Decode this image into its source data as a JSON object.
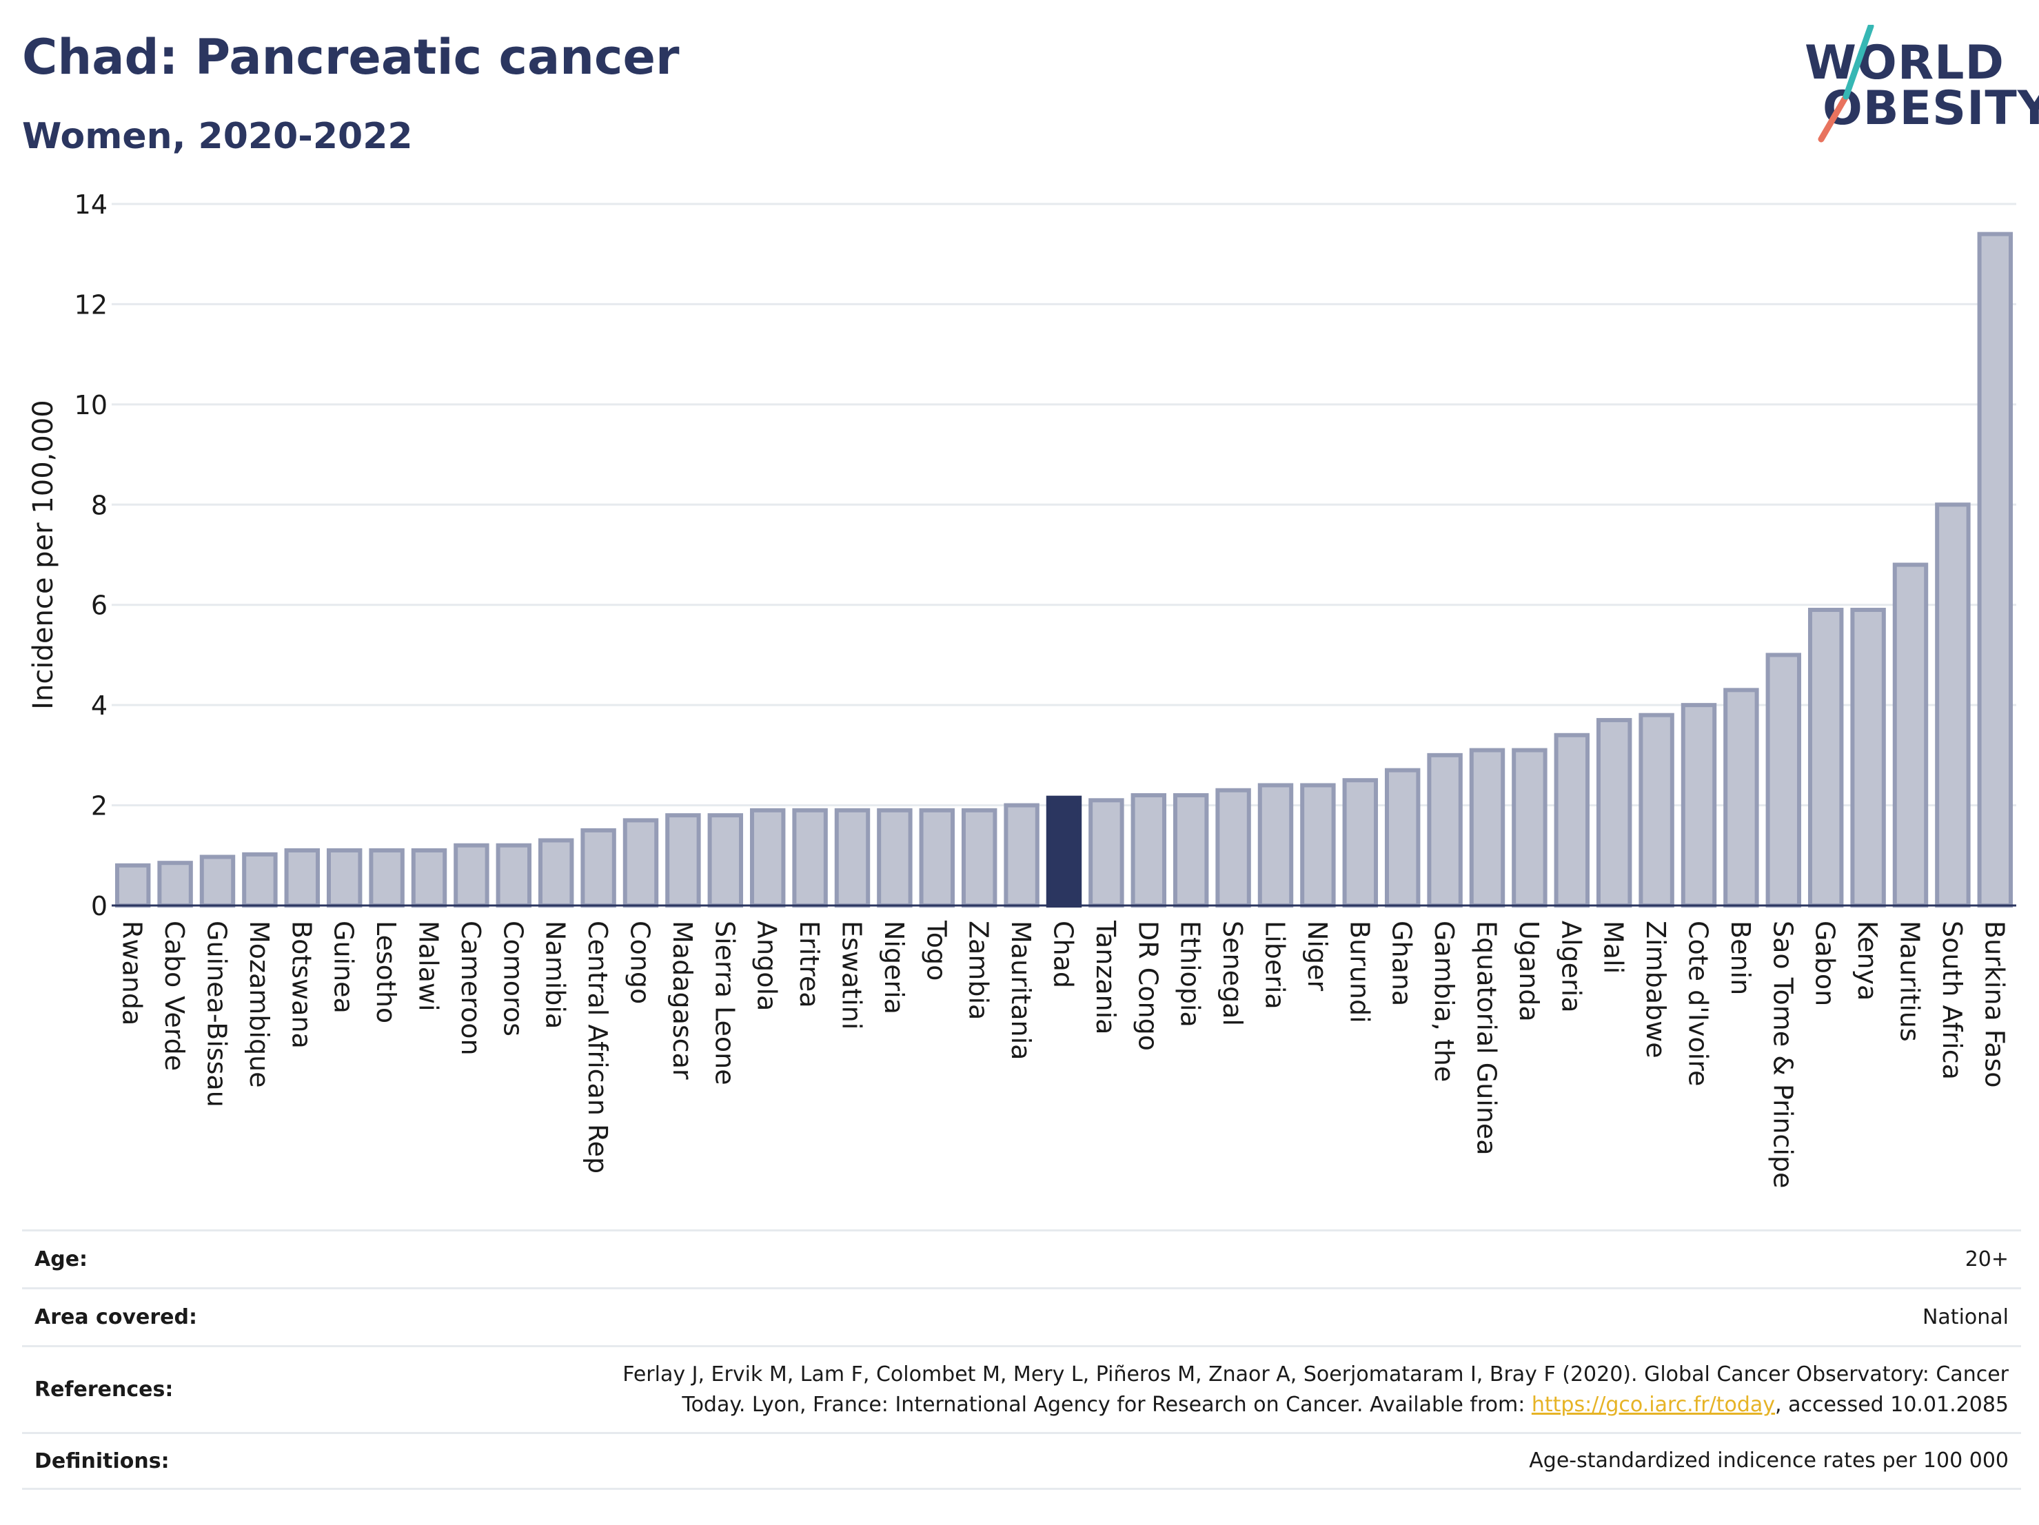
{
  "title": "Chad: Pancreatic cancer",
  "subtitle": "Women, 2020-2022",
  "logo": {
    "line1": "WORLD",
    "line2": "OBESITY"
  },
  "colors": {
    "highlight": "#2b3660",
    "bar_fill": "#bfc3d1",
    "bar_stroke": "#959cb6",
    "grid": "#e6eaee",
    "logo_teal": "#36b7b4",
    "logo_coral": "#e8735e"
  },
  "chart_data": {
    "type": "bar",
    "ylabel": "Incidence per 100,000",
    "ylim": [
      0,
      14
    ],
    "yticks": [
      0,
      2,
      4,
      6,
      8,
      10,
      12,
      14
    ],
    "grid": true,
    "highlight": "Chad",
    "categories": [
      "Rwanda",
      "Cabo Verde",
      "Guinea-Bissau",
      "Mozambique",
      "Botswana",
      "Guinea",
      "Lesotho",
      "Malawi",
      "Cameroon",
      "Comoros",
      "Namibia",
      "Central African Rep",
      "Congo",
      "Madagascar",
      "Sierra Leone",
      "Angola",
      "Eritrea",
      "Eswatini",
      "Nigeria",
      "Togo",
      "Zambia",
      "Mauritania",
      "Chad",
      "Tanzania",
      "DR Congo",
      "Ethiopia",
      "Senegal",
      "Liberia",
      "Niger",
      "Burundi",
      "Ghana",
      "Gambia, the",
      "Equatorial Guinea",
      "Uganda",
      "Algeria",
      "Mali",
      "Zimbabwe",
      "Cote d'Ivoire",
      "Benin",
      "Sao Tome & Principe",
      "Gabon",
      "Kenya",
      "Mauritius",
      "South Africa",
      "Burkina Faso"
    ],
    "values": [
      0.8,
      0.85,
      0.97,
      1.02,
      1.1,
      1.1,
      1.1,
      1.1,
      1.2,
      1.2,
      1.3,
      1.5,
      1.7,
      1.8,
      1.8,
      1.9,
      1.9,
      1.9,
      1.9,
      1.9,
      1.9,
      2.0,
      2.15,
      2.1,
      2.2,
      2.2,
      2.3,
      2.4,
      2.4,
      2.5,
      2.7,
      3.0,
      3.1,
      3.1,
      3.4,
      3.7,
      3.8,
      4.0,
      4.3,
      5.0,
      5.9,
      5.9,
      6.8,
      8.0,
      13.4
    ]
  },
  "meta": {
    "age": {
      "label": "Age:",
      "value": "20+"
    },
    "area": {
      "label": "Area covered:",
      "value": "National"
    },
    "references": {
      "label": "References:",
      "text_before": "Ferlay J, Ervik M, Lam F, Colombet M, Mery L, Piñeros M, Znaor A, Soerjomataram I, Bray F (2020). Global Cancer Observatory: Cancer Today. Lyon, France: International Agency for Research on Cancer. Available from: ",
      "link": "https://gco.iarc.fr/today",
      "text_after": ", accessed 10.01.2085"
    },
    "definitions": {
      "label": "Definitions:",
      "value": "Age-standardized indicence rates per 100 000"
    }
  }
}
